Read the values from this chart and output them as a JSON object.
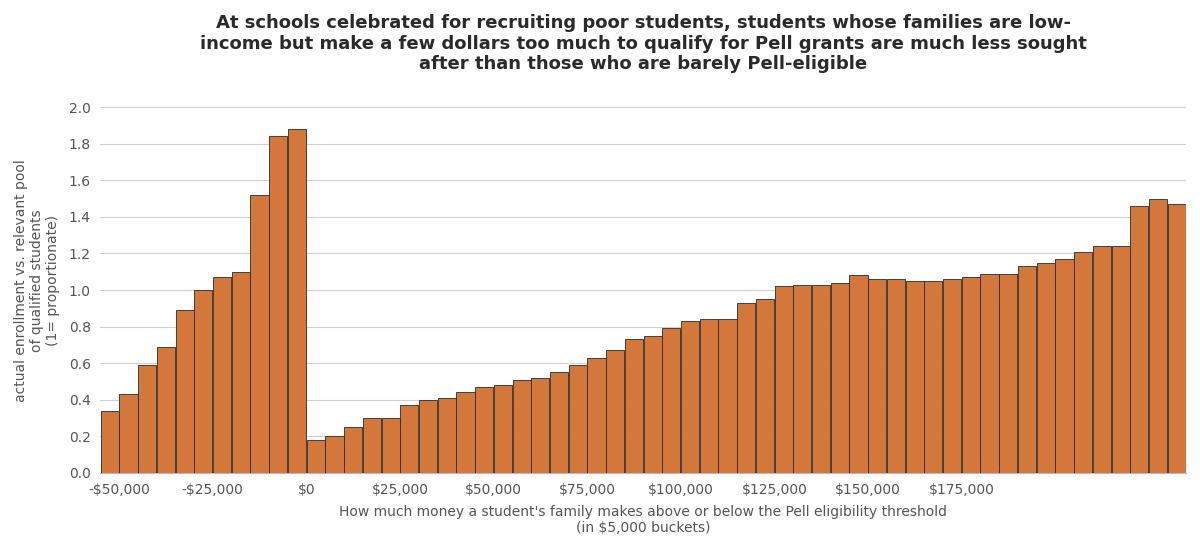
{
  "title": "At schools celebrated for recruiting poor students, students whose families are low-\nincome but make a few dollars too much to qualify for Pell grants are much less sought\nafter than those who are barely Pell-eligible",
  "xlabel": "How much money a student's family makes above or below the Pell eligibility threshold\n(in $5,000 buckets)",
  "ylabel": "actual enrollment vs. relevant pool\nof qualified students\n(1= proportionate)",
  "bar_color": "#d4773a",
  "bar_edge_color": "#2a2a2a",
  "background_color": "#ffffff",
  "title_color": "#2a2a2a",
  "axis_label_color": "#555555",
  "tick_label_color": "#555555",
  "grid_color": "#d0d0d0",
  "ylim": [
    0.0,
    2.1
  ],
  "yticks": [
    0.0,
    0.2,
    0.4,
    0.6,
    0.8,
    1.0,
    1.2,
    1.4,
    1.6,
    1.8,
    2.0
  ],
  "xtick_labels": [
    "-$50,000",
    "-$25,000",
    "$0",
    "$25,000",
    "$50,000",
    "$75,000",
    "$100,000",
    "$125,000",
    "$150,000",
    "$175,000"
  ],
  "xtick_positions": [
    -50000,
    -25000,
    0,
    25000,
    50000,
    75000,
    100000,
    125000,
    150000,
    175000
  ],
  "bar_values": [
    0.34,
    0.43,
    0.59,
    0.69,
    0.89,
    1.0,
    1.07,
    1.1,
    1.52,
    1.84,
    1.88,
    0.18,
    0.2,
    0.25,
    0.3,
    0.3,
    0.37,
    0.4,
    0.41,
    0.44,
    0.47,
    0.48,
    0.51,
    0.52,
    0.55,
    0.59,
    0.63,
    0.67,
    0.73,
    0.75,
    0.79,
    0.83,
    0.84,
    0.84,
    0.93,
    0.95,
    1.02,
    1.03,
    1.03,
    1.04,
    1.08,
    1.06,
    1.06,
    1.05,
    1.05,
    1.06,
    1.07,
    1.09,
    1.09,
    1.13,
    1.15,
    1.17,
    1.21,
    1.24,
    1.24,
    1.46,
    1.5,
    1.47
  ],
  "x_start": -52500,
  "x_step": 5000
}
